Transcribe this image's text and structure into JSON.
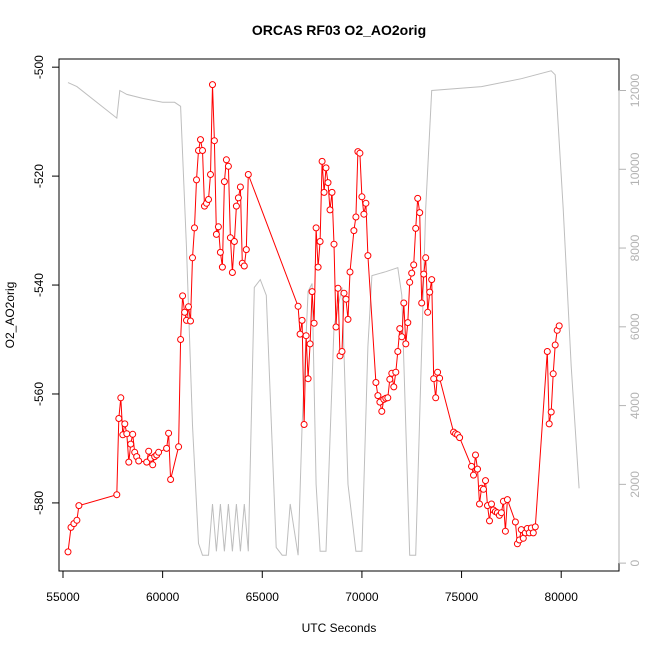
{
  "chart_data": {
    "type": "line",
    "title": "ORCAS RF03 O2_AO2orig",
    "xlabel": "UTC Seconds",
    "ylabel": "O2_AO2orig",
    "xlim": [
      54800,
      82900
    ],
    "ylim": [
      -592.5,
      -498.5
    ],
    "y2lim": [
      -200,
      12800
    ],
    "x_ticks": [
      55000,
      60000,
      65000,
      70000,
      75000,
      80000
    ],
    "y_ticks": [
      -500,
      -520,
      -540,
      -560,
      -580
    ],
    "y2_ticks": [
      0,
      2000,
      4000,
      6000,
      8000,
      10000,
      12000
    ],
    "grid": false,
    "colors": {
      "o2_series": "#ff0000",
      "altitude_series": "#bebebe",
      "right_axis": "#b3b3b3"
    },
    "series": [
      {
        "axis": "left",
        "style": "line+open-circle",
        "points": [
          [
            55250,
            -589
          ],
          [
            55400,
            -584.5
          ],
          [
            55550,
            -583.8
          ],
          [
            55700,
            -583.2
          ],
          [
            55800,
            -580.5
          ],
          [
            57700,
            -578.5
          ],
          [
            57800,
            -564.5
          ],
          [
            57900,
            -560.7
          ],
          [
            58000,
            -567.5
          ],
          [
            58100,
            -565.5
          ],
          [
            58200,
            -567.3
          ],
          [
            58300,
            -572.5
          ],
          [
            58400,
            -569.2
          ],
          [
            58500,
            -567.4
          ],
          [
            58600,
            -570.7
          ],
          [
            58700,
            -571.5
          ],
          [
            58800,
            -572.3
          ],
          [
            59200,
            -572.5
          ],
          [
            59300,
            -570.5
          ],
          [
            59400,
            -571.8
          ],
          [
            59500,
            -573
          ],
          [
            59600,
            -571.5
          ],
          [
            59700,
            -571.2
          ],
          [
            59800,
            -570.7
          ],
          [
            60200,
            -570
          ],
          [
            60300,
            -567.2
          ],
          [
            60400,
            -575.7
          ],
          [
            60800,
            -569.7
          ],
          [
            60900,
            -550
          ],
          [
            61000,
            -542
          ],
          [
            61100,
            -545
          ],
          [
            61200,
            -546.5
          ],
          [
            61300,
            -544
          ],
          [
            61400,
            -546.6
          ],
          [
            61500,
            -535
          ],
          [
            61600,
            -529.5
          ],
          [
            61700,
            -520.7
          ],
          [
            61800,
            -515.3
          ],
          [
            61900,
            -513.3
          ],
          [
            62000,
            -515.3
          ],
          [
            62100,
            -525.5
          ],
          [
            62200,
            -525
          ],
          [
            62300,
            -524.3
          ],
          [
            62400,
            -519.7
          ],
          [
            62500,
            -503.2
          ],
          [
            62600,
            -513.5
          ],
          [
            62700,
            -530.7
          ],
          [
            62800,
            -529.3
          ],
          [
            62900,
            -534
          ],
          [
            63000,
            -536.7
          ],
          [
            63100,
            -521
          ],
          [
            63200,
            -517
          ],
          [
            63300,
            -518.2
          ],
          [
            63400,
            -531.3
          ],
          [
            63500,
            -537.7
          ],
          [
            63600,
            -532
          ],
          [
            63700,
            -525.5
          ],
          [
            63800,
            -524
          ],
          [
            63900,
            -522
          ],
          [
            64000,
            -536
          ],
          [
            64100,
            -536.5
          ],
          [
            64200,
            -533.5
          ],
          [
            64300,
            -519.7
          ],
          [
            66800,
            -543.9
          ],
          [
            66900,
            -549
          ],
          [
            67000,
            -546.5
          ],
          [
            67100,
            -565.6
          ],
          [
            67200,
            -549.3
          ],
          [
            67300,
            -557.2
          ],
          [
            67400,
            -550.8
          ],
          [
            67500,
            -541.2
          ],
          [
            67600,
            -547
          ],
          [
            67700,
            -529.5
          ],
          [
            67800,
            -536.7
          ],
          [
            67900,
            -532
          ],
          [
            68000,
            -517.3
          ],
          [
            68100,
            -523
          ],
          [
            68200,
            -518.5
          ],
          [
            68300,
            -521.2
          ],
          [
            68400,
            -526.2
          ],
          [
            68500,
            -523
          ],
          [
            68600,
            -532.5
          ],
          [
            68700,
            -547.7
          ],
          [
            68800,
            -540.6
          ],
          [
            68900,
            -553
          ],
          [
            69000,
            -552.2
          ],
          [
            69100,
            -541.5
          ],
          [
            69200,
            -542.6
          ],
          [
            69300,
            -546.3
          ],
          [
            69400,
            -537.6
          ],
          [
            69600,
            -530
          ],
          [
            69700,
            -527.5
          ],
          [
            69800,
            -515.5
          ],
          [
            69900,
            -515.8
          ],
          [
            70000,
            -523.8
          ],
          [
            70100,
            -527
          ],
          [
            70200,
            -525
          ],
          [
            70300,
            -534.6
          ],
          [
            70700,
            -557.9
          ],
          [
            70800,
            -560.3
          ],
          [
            70900,
            -561.5
          ],
          [
            71000,
            -563.2
          ],
          [
            71100,
            -561
          ],
          [
            71200,
            -560.8
          ],
          [
            71300,
            -560.7
          ],
          [
            71400,
            -557.3
          ],
          [
            71500,
            -556.2
          ],
          [
            71600,
            -558.7
          ],
          [
            71700,
            -556
          ],
          [
            71800,
            -552.2
          ],
          [
            71900,
            -548
          ],
          [
            72000,
            -549.5
          ],
          [
            72100,
            -543.3
          ],
          [
            72200,
            -550.8
          ],
          [
            72300,
            -546.9
          ],
          [
            72400,
            -539.5
          ],
          [
            72500,
            -537.8
          ],
          [
            72600,
            -536.3
          ],
          [
            72700,
            -529.6
          ],
          [
            72800,
            -524.1
          ],
          [
            72900,
            -526.7
          ],
          [
            73000,
            -543.3
          ],
          [
            73100,
            -538
          ],
          [
            73200,
            -535
          ],
          [
            73300,
            -545
          ],
          [
            73400,
            -541.3
          ],
          [
            73500,
            -539
          ],
          [
            73600,
            -557.2
          ],
          [
            73700,
            -560.7
          ],
          [
            73800,
            -556
          ],
          [
            73900,
            -557.1
          ],
          [
            74600,
            -567
          ],
          [
            74700,
            -567.3
          ],
          [
            74800,
            -567.5
          ],
          [
            74900,
            -568
          ],
          [
            75500,
            -573.3
          ],
          [
            75600,
            -574.9
          ],
          [
            75700,
            -571.2
          ],
          [
            75800,
            -573.8
          ],
          [
            75900,
            -580.2
          ],
          [
            76000,
            -577.3
          ],
          [
            76100,
            -577.5
          ],
          [
            76200,
            -575.9
          ],
          [
            76300,
            -580.5
          ],
          [
            76400,
            -583.3
          ],
          [
            76500,
            -580.2
          ],
          [
            76600,
            -581.3
          ],
          [
            76700,
            -581.6
          ],
          [
            76800,
            -581.8
          ],
          [
            76900,
            -582.3
          ],
          [
            77000,
            -581.8
          ],
          [
            77100,
            -579.7
          ],
          [
            77200,
            -585.2
          ],
          [
            77300,
            -579.4
          ],
          [
            77700,
            -583.5
          ],
          [
            77800,
            -587.5
          ],
          [
            77900,
            -586.8
          ],
          [
            78000,
            -584.9
          ],
          [
            78100,
            -586.5
          ],
          [
            78200,
            -585.5
          ],
          [
            78300,
            -584.7
          ],
          [
            78400,
            -585.5
          ],
          [
            78500,
            -584.6
          ],
          [
            78600,
            -585.5
          ],
          [
            78700,
            -584.4
          ],
          [
            79300,
            -552.2
          ],
          [
            79400,
            -565.5
          ],
          [
            79500,
            -563.3
          ],
          [
            79600,
            -556.3
          ],
          [
            79700,
            -551
          ],
          [
            79800,
            -548.3
          ],
          [
            79900,
            -547.5
          ]
        ]
      },
      {
        "axis": "right",
        "style": "line",
        "points": [
          [
            55250,
            12200
          ],
          [
            55700,
            12100
          ],
          [
            57700,
            11300
          ],
          [
            57850,
            12000
          ],
          [
            58200,
            11900
          ],
          [
            59000,
            11800
          ],
          [
            60000,
            11700
          ],
          [
            60600,
            11700
          ],
          [
            60900,
            11600
          ],
          [
            61200,
            8000
          ],
          [
            61500,
            3500
          ],
          [
            61800,
            500
          ],
          [
            62000,
            200
          ],
          [
            62300,
            200
          ],
          [
            62500,
            1500
          ],
          [
            62700,
            300
          ],
          [
            62900,
            1500
          ],
          [
            63100,
            300
          ],
          [
            63300,
            1500
          ],
          [
            63500,
            300
          ],
          [
            63700,
            1500
          ],
          [
            63900,
            300
          ],
          [
            64100,
            1500
          ],
          [
            64300,
            300
          ],
          [
            64600,
            7000
          ],
          [
            64900,
            7200
          ],
          [
            65200,
            6800
          ],
          [
            65700,
            400
          ],
          [
            66000,
            200
          ],
          [
            66200,
            200
          ],
          [
            66400,
            1500
          ],
          [
            66800,
            200
          ],
          [
            67000,
            3500
          ],
          [
            67300,
            6900
          ],
          [
            67500,
            7100
          ],
          [
            67700,
            2000
          ],
          [
            67900,
            300
          ],
          [
            68200,
            300
          ],
          [
            68600,
            6000
          ],
          [
            69000,
            7000
          ],
          [
            69300,
            2000
          ],
          [
            69700,
            300
          ],
          [
            70000,
            300
          ],
          [
            70300,
            5500
          ],
          [
            70500,
            7300
          ],
          [
            71200,
            7400
          ],
          [
            71800,
            7500
          ],
          [
            72000,
            6800
          ],
          [
            72400,
            200
          ],
          [
            72700,
            200
          ],
          [
            73200,
            9000
          ],
          [
            73500,
            12000
          ],
          [
            76000,
            12100
          ],
          [
            78000,
            12300
          ],
          [
            79500,
            12500
          ],
          [
            79700,
            12400
          ],
          [
            80100,
            9000
          ],
          [
            80500,
            5000
          ],
          [
            80900,
            1900
          ]
        ]
      }
    ]
  }
}
